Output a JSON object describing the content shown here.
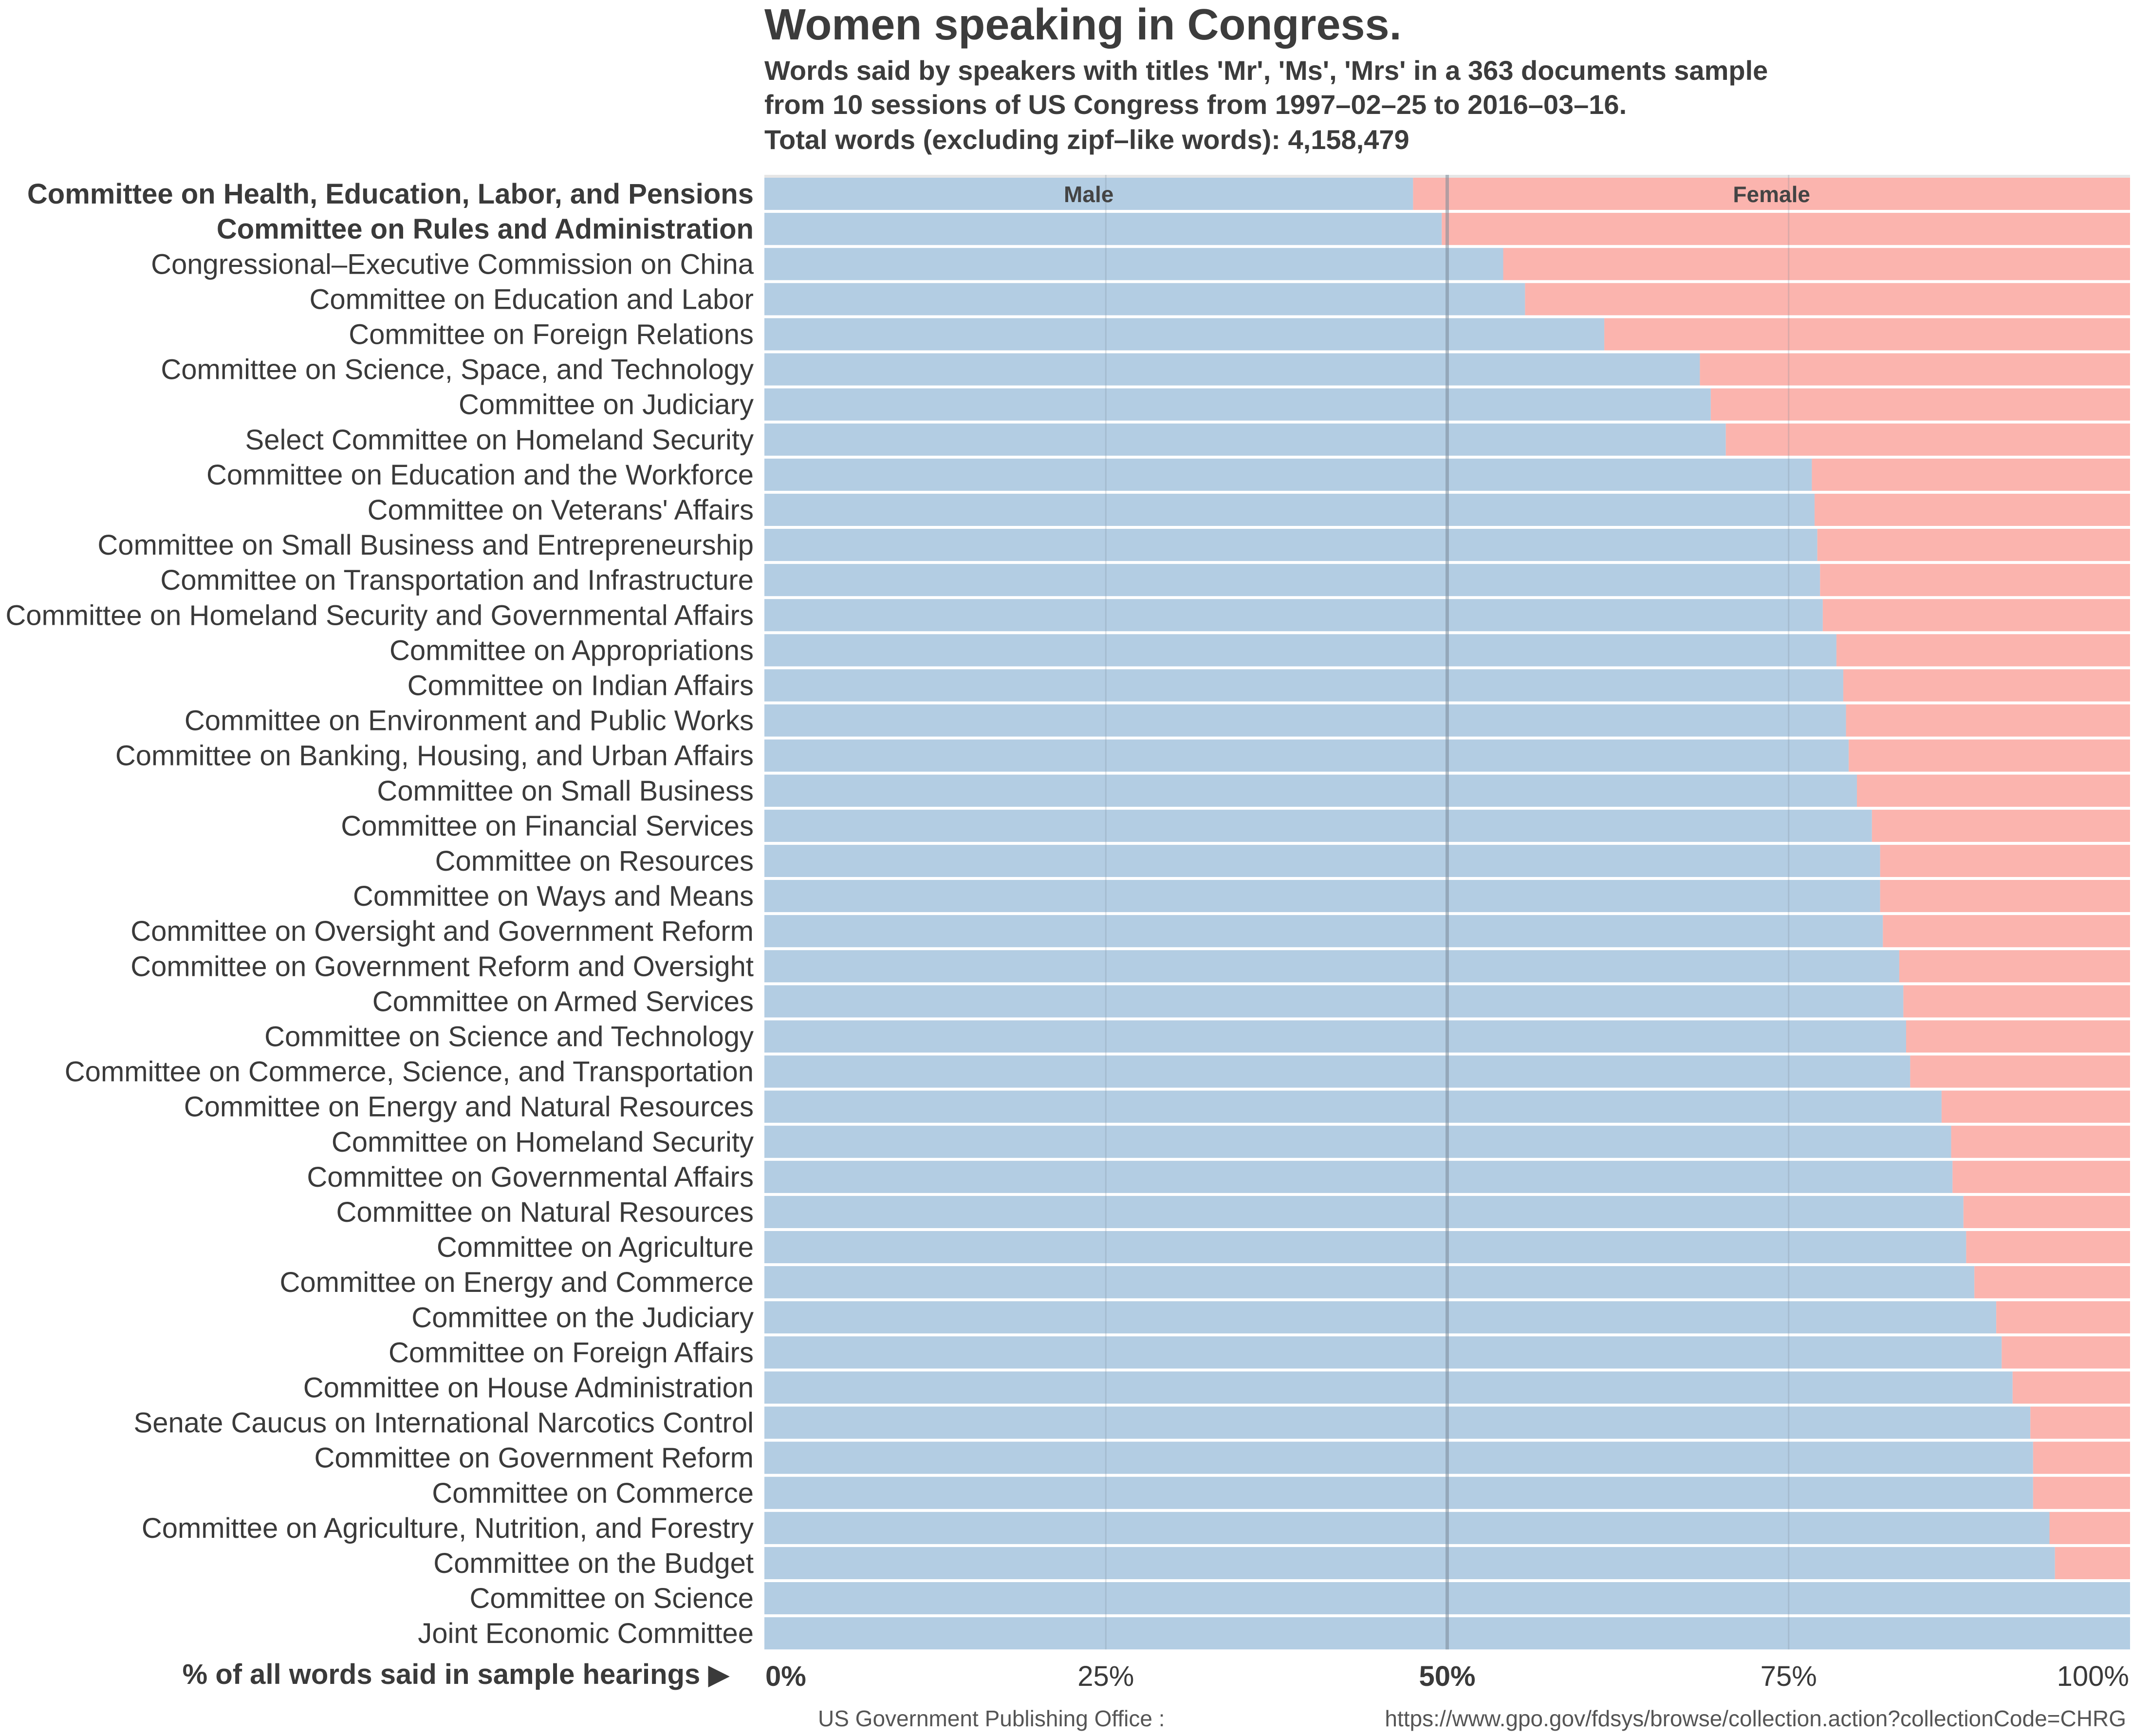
{
  "header": {
    "title": "Women speaking in Congress.",
    "subtitle_lines": [
      "Words said by speakers with titles 'Mr', 'Ms', 'Mrs' in a 363 documents sample",
      "from 10 sessions of US Congress from 1997–02–25 to 2016–03–16.",
      "Total words (excluding zipf–like words): 4,158,479"
    ]
  },
  "footer": {
    "xaxis_label": "% of all words said in sample hearings ▶",
    "source_name": "US Government Publishing Office :",
    "source_url": "https://www.gpo.gov/fdsys/browse/collection.action?collectionCode=CHRG"
  },
  "colors": {
    "male": "#b3cde3",
    "female": "#fbb4ae",
    "separator": "#ffffff",
    "gridline": "#7a8a99"
  },
  "chart_data": {
    "type": "bar",
    "orientation": "horizontal",
    "stacked": "percent",
    "xlim": [
      0,
      100
    ],
    "xticks": [
      "0%",
      "25%",
      "50%",
      "75%",
      "100%"
    ],
    "xtick_values": [
      0,
      25,
      50,
      75,
      100
    ],
    "bold_xticks": [
      "0%",
      "50%"
    ],
    "emphasis_line_at": 50,
    "bold_categories": [
      "Committee on Health, Education, Labor, and Pensions",
      "Committee on Rules and Administration"
    ],
    "categories": [
      "Committee on Health, Education, Labor, and Pensions",
      "Committee on Rules and Administration",
      "Congressional–Executive Commission on China",
      "Committee on Education and Labor",
      "Committee on Foreign Relations",
      "Committee on Science, Space, and Technology",
      "Committee on Judiciary",
      "Select Committee on Homeland Security",
      "Committee on Education and the Workforce",
      "Committee on Veterans' Affairs",
      "Committee on Small Business and Entrepreneurship",
      "Committee on Transportation and Infrastructure",
      "Committee on Homeland Security and Governmental Affairs",
      "Committee on Appropriations",
      "Committee on Indian Affairs",
      "Committee on Environment and Public Works",
      "Committee on Banking, Housing, and Urban Affairs",
      "Committee on Small Business",
      "Committee on Financial Services",
      "Committee on Resources",
      "Committee on Ways and Means",
      "Committee on Oversight and Government Reform",
      "Committee on Government Reform and Oversight",
      "Committee on Armed Services",
      "Committee on Science and Technology",
      "Committee on Commerce, Science, and Transportation",
      "Committee on Energy and Natural Resources",
      "Committee on Homeland Security",
      "Committee on Governmental Affairs",
      "Committee on Natural Resources",
      "Committee on Agriculture",
      "Committee on Energy and Commerce",
      "Committee on the Judiciary",
      "Committee on Foreign Affairs",
      "Committee on House Administration",
      "Senate Caucus on International Narcotics Control",
      "Committee on Government Reform",
      "Committee on Commerce",
      "Committee on Agriculture, Nutrition, and Forestry",
      "Committee on the Budget",
      "Committee on Science",
      "Joint Economic Committee"
    ],
    "series": [
      {
        "name": "Male",
        "values": [
          47.5,
          49.6,
          54.1,
          55.7,
          61.5,
          68.5,
          69.3,
          70.4,
          76.7,
          76.9,
          77.1,
          77.3,
          77.5,
          78.5,
          79.0,
          79.2,
          79.4,
          80.0,
          81.1,
          81.7,
          81.7,
          81.9,
          83.1,
          83.4,
          83.6,
          83.9,
          86.2,
          86.9,
          87.0,
          87.8,
          88.0,
          88.6,
          90.2,
          90.6,
          91.4,
          92.7,
          92.9,
          92.9,
          94.1,
          94.5,
          100.0,
          100.0
        ]
      },
      {
        "name": "Female",
        "values": [
          52.5,
          50.4,
          45.9,
          44.3,
          38.5,
          31.5,
          30.7,
          29.6,
          23.3,
          23.1,
          22.9,
          22.7,
          22.5,
          21.5,
          21.0,
          20.8,
          20.6,
          20.0,
          18.9,
          18.3,
          18.3,
          18.1,
          16.9,
          16.6,
          16.4,
          16.1,
          13.8,
          13.1,
          13.0,
          12.2,
          12.0,
          11.4,
          9.8,
          9.4,
          8.6,
          7.3,
          7.1,
          7.1,
          5.9,
          5.5,
          0.0,
          0.0
        ]
      }
    ]
  }
}
